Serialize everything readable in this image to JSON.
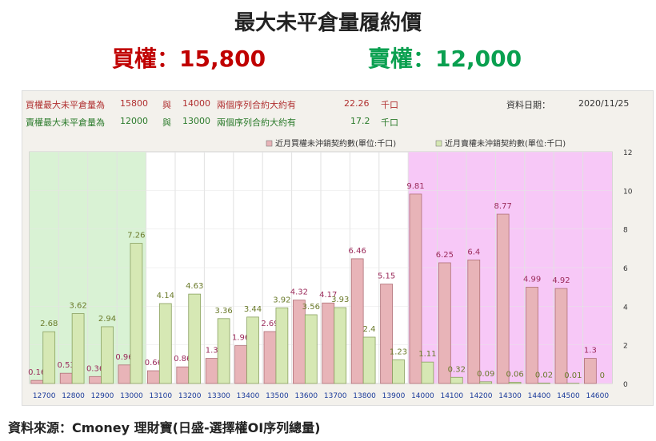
{
  "header": {
    "title": "最大未平倉量履約價",
    "buy_label": "買權：15,800",
    "sell_label": "賣權：12,000"
  },
  "info": {
    "row1": {
      "prefix": "買權最大未平倉量為",
      "strike1": "15800",
      "and": "與",
      "strike2": "14000",
      "desc": "兩個序列合約大約有",
      "value": "22.26",
      "unit": "千口"
    },
    "row2": {
      "prefix": "賣權最大未平倉量為",
      "strike1": "12000",
      "and": "與",
      "strike2": "13000",
      "desc": "兩個序列合約大約有",
      "value": "17.2",
      "unit": "千口"
    },
    "date_label": "資料日期：",
    "date": "2020/11/25"
  },
  "footer": "資料來源：Cmoney 理財寶(日盛-選擇權OI序列總量)",
  "chart_data": {
    "type": "bar",
    "categories": [
      "12700",
      "12800",
      "12900",
      "13000",
      "13100",
      "13200",
      "13300",
      "13400",
      "13500",
      "13600",
      "13700",
      "13800",
      "13900",
      "14000",
      "14100",
      "14200",
      "14300",
      "14400",
      "14500",
      "14600"
    ],
    "series": [
      {
        "name": "近月買權未沖銷契約數(單位:千口)",
        "color": "#e8b4b8",
        "values": [
          0.16,
          0.53,
          0.36,
          0.96,
          0.66,
          0.86,
          1.3,
          1.96,
          2.69,
          4.32,
          4.17,
          6.46,
          5.15,
          9.81,
          6.25,
          6.4,
          8.77,
          4.99,
          4.92,
          1.3
        ]
      },
      {
        "name": "近月賣權未沖銷契約數(單位:千口)",
        "color": "#d6e8b4",
        "values": [
          2.68,
          3.62,
          2.94,
          7.26,
          4.14,
          4.63,
          3.36,
          3.44,
          3.92,
          3.56,
          3.93,
          2.4,
          1.23,
          1.11,
          0.32,
          0.09,
          0.06,
          0.02,
          0.01,
          0
        ]
      }
    ],
    "ylim": [
      0,
      12
    ],
    "yticks": [
      0,
      2,
      4,
      6,
      8,
      10,
      12
    ],
    "highlight_regions": [
      {
        "from": "12700",
        "to": "13000",
        "color": "#d9f2d4"
      },
      {
        "from": "14000",
        "to": "14600",
        "color": "#f7c8f7"
      }
    ],
    "grid": true,
    "legend_position": "top"
  }
}
